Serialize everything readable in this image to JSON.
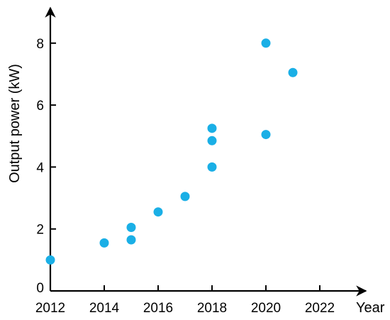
{
  "chart_data": {
    "type": "scatter",
    "title": "",
    "xlabel": "Year",
    "ylabel": "Output power (kW)",
    "xlim": [
      2012,
      2023.5
    ],
    "ylim": [
      0,
      9.1
    ],
    "x_ticks": [
      2012,
      2014,
      2016,
      2018,
      2020,
      2022
    ],
    "x_tick_labels": [
      "2012",
      "2014",
      "2016",
      "2018",
      "2020",
      "2022"
    ],
    "y_ticks": [
      0,
      2,
      4,
      6,
      8
    ],
    "y_tick_labels": [
      "0",
      "2",
      "4",
      "6",
      "8"
    ],
    "grid": false,
    "legend": "none",
    "marker_color": "#1AAFE6",
    "points": [
      {
        "x": 2012,
        "y": 1.0
      },
      {
        "x": 2014,
        "y": 1.55
      },
      {
        "x": 2015,
        "y": 2.05
      },
      {
        "x": 2015,
        "y": 1.65
      },
      {
        "x": 2016,
        "y": 2.55
      },
      {
        "x": 2017,
        "y": 3.05
      },
      {
        "x": 2018,
        "y": 4.0
      },
      {
        "x": 2018,
        "y": 4.85
      },
      {
        "x": 2018,
        "y": 5.25
      },
      {
        "x": 2020,
        "y": 5.05
      },
      {
        "x": 2020,
        "y": 8.0
      },
      {
        "x": 2021,
        "y": 7.05
      }
    ]
  }
}
